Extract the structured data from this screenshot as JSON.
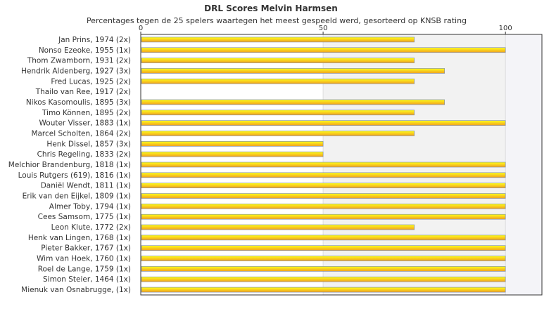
{
  "chart_data": {
    "type": "bar",
    "orientation": "horizontal",
    "title": "DRL Scores Melvin Harmsen",
    "subtitle": "Percentages tegen de 25 spelers waartegen het meest gespeeld werd, gesorteerd op KNSB rating",
    "xlim": [
      0,
      110
    ],
    "xticks": [
      "0",
      "50",
      "100"
    ],
    "grid": true,
    "legend": "none",
    "colors": {
      "bar_start": "#ffff1a",
      "bar_end": "#f0a020",
      "bar_stroke": "#7788aa",
      "band_light": "#f2f2f2",
      "band_lighter": "#f4f4f8",
      "axis": "#333333"
    },
    "categories": [
      "Jan Prins, 1974 (2x)",
      "Nonso Ezeoke, 1955 (1x)",
      "Thom Zwamborn, 1931 (2x)",
      "Hendrik Aldenberg, 1927 (3x)",
      "Fred Lucas, 1925 (2x)",
      "Thailo van Ree, 1917 (2x)",
      "Nikos Kasomoulis, 1895 (3x)",
      "Timo Können, 1895 (2x)",
      "Wouter Visser, 1883 (1x)",
      "Marcel Scholten, 1864 (2x)",
      "Henk Dissel, 1857 (3x)",
      "Chris Regeling, 1833 (2x)",
      "Melchior Brandenburg, 1818 (1x)",
      "Louis Rutgers (619), 1816 (1x)",
      "Daniël Wendt, 1811 (1x)",
      "Erik van den Eijkel, 1809 (1x)",
      "Almer Toby, 1794 (1x)",
      "Cees Samsom, 1775 (1x)",
      "Leon Klute, 1772 (2x)",
      "Henk van Lingen, 1768 (1x)",
      "Pieter Bakker, 1767 (1x)",
      "Wim van Hoek, 1760 (1x)",
      "Roel de Lange, 1759 (1x)",
      "Simon Steier, 1464 (1x)",
      "Mienuk van Osnabrugge,  (1x)"
    ],
    "values": [
      75,
      100,
      75,
      83.3,
      75,
      0,
      83.3,
      75,
      100,
      75,
      50,
      50,
      100,
      100,
      100,
      100,
      100,
      100,
      75,
      100,
      100,
      100,
      100,
      100,
      100
    ]
  }
}
